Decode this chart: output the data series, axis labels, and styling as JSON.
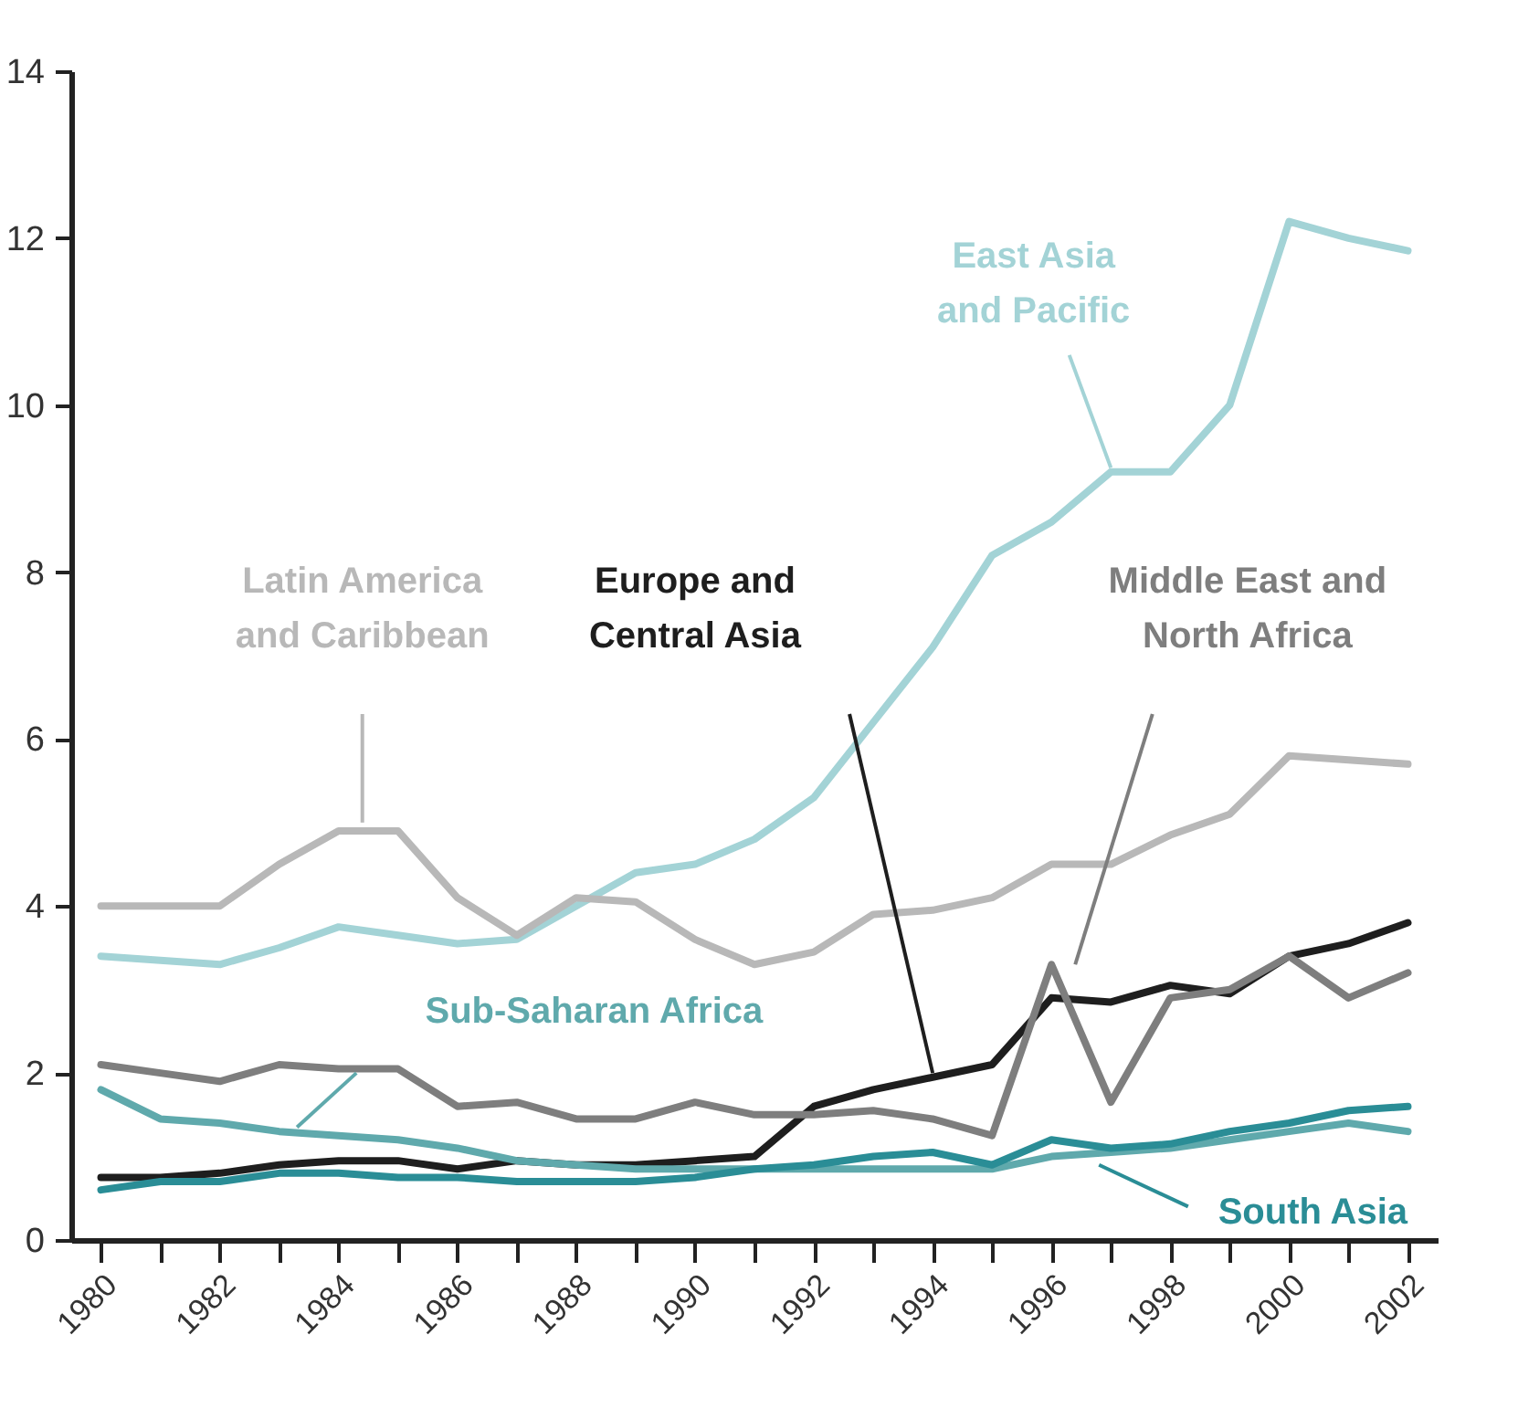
{
  "chart_data": {
    "type": "line",
    "x": [
      1980,
      1981,
      1982,
      1983,
      1984,
      1985,
      1986,
      1987,
      1988,
      1989,
      1990,
      1991,
      1992,
      1993,
      1994,
      1995,
      1996,
      1997,
      1998,
      1999,
      2000,
      2001,
      2002
    ],
    "series": [
      {
        "name": "East Asia and Pacific",
        "color": "#a3d3d6",
        "values": [
          3.4,
          3.35,
          3.3,
          3.5,
          3.75,
          3.65,
          3.55,
          3.6,
          4.0,
          4.4,
          4.5,
          4.8,
          5.3,
          6.2,
          7.1,
          8.2,
          8.6,
          9.2,
          9.2,
          10.0,
          12.2,
          12.0,
          11.85
        ]
      },
      {
        "name": "Latin America and Caribbean",
        "color": "#b8b8b8",
        "values": [
          4.0,
          4.0,
          4.0,
          4.5,
          4.9,
          4.9,
          4.1,
          3.65,
          4.1,
          4.05,
          3.6,
          3.3,
          3.45,
          3.9,
          3.95,
          4.1,
          4.5,
          4.5,
          4.85,
          5.1,
          5.8,
          5.75,
          5.7
        ]
      },
      {
        "name": "Europe and Central Asia",
        "color": "#1e1e1e",
        "values": [
          0.75,
          0.75,
          0.8,
          0.9,
          0.95,
          0.95,
          0.85,
          0.95,
          0.9,
          0.9,
          0.95,
          1.0,
          1.6,
          1.8,
          1.95,
          2.1,
          2.9,
          2.85,
          3.05,
          2.95,
          3.4,
          3.55,
          3.8
        ]
      },
      {
        "name": "Middle East and North Africa",
        "color": "#7e7e7e",
        "values": [
          2.1,
          2.0,
          1.9,
          2.1,
          2.05,
          2.05,
          1.6,
          1.65,
          1.45,
          1.45,
          1.65,
          1.5,
          1.5,
          1.55,
          1.45,
          1.25,
          3.3,
          1.65,
          2.9,
          3.0,
          3.4,
          2.9,
          3.2
        ]
      },
      {
        "name": "Sub-Saharan Africa",
        "color": "#5fa9ac",
        "values": [
          1.8,
          1.45,
          1.4,
          1.3,
          1.25,
          1.2,
          1.1,
          0.95,
          0.9,
          0.85,
          0.85,
          0.85,
          0.85,
          0.85,
          0.85,
          0.85,
          1.0,
          1.05,
          1.1,
          1.2,
          1.3,
          1.4,
          1.3
        ]
      },
      {
        "name": "South Asia",
        "color": "#2a8d96",
        "values": [
          0.6,
          0.7,
          0.7,
          0.8,
          0.8,
          0.75,
          0.75,
          0.7,
          0.7,
          0.7,
          0.75,
          0.85,
          0.9,
          1.0,
          1.05,
          0.9,
          1.2,
          1.1,
          1.15,
          1.3,
          1.4,
          1.55,
          1.6
        ]
      }
    ],
    "xlim": [
      1979.5,
      2002.5
    ],
    "xticks": [
      1980,
      {
        "value": 1981,
        "label": null
      },
      1982,
      {
        "value": 1983,
        "label": null
      },
      1984,
      {
        "value": 1985,
        "label": null
      },
      1986,
      {
        "value": 1987,
        "label": null
      },
      1988,
      {
        "value": 1989,
        "label": null
      },
      1990,
      {
        "value": 1991,
        "label": null
      },
      1992,
      {
        "value": 1993,
        "label": null
      },
      1994,
      {
        "value": 1995,
        "label": null
      },
      1996,
      {
        "value": 1997,
        "label": null
      },
      1998,
      {
        "value": 1999,
        "label": null
      },
      2000,
      {
        "value": 2001,
        "label": null
      },
      2002
    ],
    "ylim": [
      0,
      14
    ],
    "yticks": [
      0,
      2,
      4,
      6,
      8,
      10,
      12,
      14
    ],
    "legend": false,
    "grid": false,
    "line_style": "solid",
    "marker": "none"
  }
}
